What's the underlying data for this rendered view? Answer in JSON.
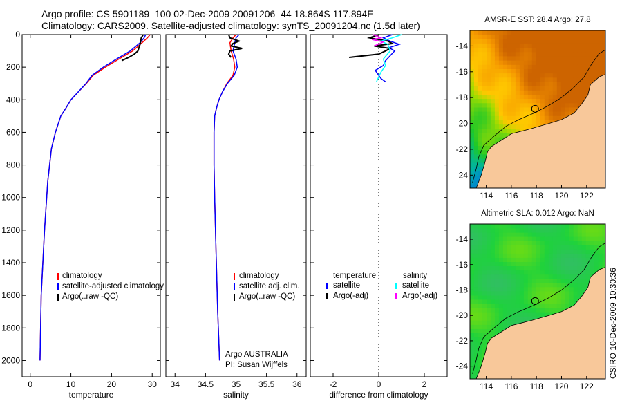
{
  "header": {
    "line1": "Argo profile: CS 5901189_100 02-Dec-2009 20091206_44 18.864S 117.894E",
    "line2": "Climatology: CARS2009. Satellite-adjusted climatology: synTS_20091204.nc (1.5d later)"
  },
  "side_text": "CSIRO 10-Dec-2009 10:30:36",
  "colors": {
    "climatology": "#ff0000",
    "satellite": "#0000ff",
    "argo": "#000000",
    "salinity_satellite": "#00ffff",
    "salinity_argo": "#ff00ff",
    "land": "#f8c89a"
  },
  "chart_data": [
    {
      "type": "line",
      "name": "temperature-profile",
      "xlabel": "temperature",
      "ylabel": "",
      "xlim": [
        -2,
        32
      ],
      "ylim": [
        2100,
        0
      ],
      "y_reversed": true,
      "xticks": [
        "0",
        "10",
        "20",
        "30"
      ],
      "yticks": [
        "0",
        "200",
        "400",
        "600",
        "800",
        "1000",
        "1200",
        "1400",
        "1600",
        "1800",
        "2000"
      ],
      "legend": [
        "climatology",
        "satellite-adjusted climatology",
        "Argo(..raw -QC)"
      ],
      "series": [
        {
          "name": "climatology",
          "color": "#ff0000",
          "x": [
            29.5,
            28.8,
            27.5,
            25.2,
            21.8,
            18.5,
            15.5,
            13.8,
            11.5,
            10.0,
            8.8,
            7.5,
            6.2,
            5.2,
            4.3,
            3.5,
            2.7,
            2.4
          ],
          "y": [
            0,
            20,
            50,
            100,
            150,
            200,
            250,
            300,
            360,
            400,
            450,
            500,
            600,
            700,
            900,
            1200,
            1600,
            2000
          ]
        },
        {
          "name": "satellite-adjusted climatology",
          "color": "#0000ff",
          "x": [
            28.4,
            28.0,
            27.0,
            24.6,
            21.2,
            18.0,
            15.2,
            13.7,
            11.5,
            10.0,
            8.8,
            7.5,
            6.2,
            5.2,
            4.3,
            3.5,
            2.7,
            2.4
          ],
          "y": [
            0,
            20,
            50,
            100,
            150,
            200,
            250,
            300,
            360,
            400,
            450,
            500,
            600,
            700,
            900,
            1200,
            1600,
            2000
          ]
        },
        {
          "name": "Argo(..raw -QC)",
          "color": "#000000",
          "x": [
            27.8,
            27.3,
            27.0,
            26.5,
            25.6,
            24.2,
            22.5
          ],
          "y": [
            0,
            20,
            60,
            100,
            120,
            140,
            160
          ]
        }
      ]
    },
    {
      "type": "line",
      "name": "salinity-profile",
      "xlabel": "salinity",
      "ylabel": "",
      "xlim": [
        33.85,
        36.15
      ],
      "ylim": [
        2100,
        0
      ],
      "y_reversed": true,
      "xticks": [
        "34",
        "34.5",
        "35",
        "35.5",
        "36"
      ],
      "legend": [
        "climatology",
        "satellite adj. clim.",
        "Argo(..raw -QC)"
      ],
      "annotations": [
        "Argo AUSTRALIA",
        "PI: Susan Wijffels"
      ],
      "series": [
        {
          "name": "climatology",
          "color": "#ff0000",
          "x": [
            35.0,
            34.95,
            34.9,
            34.92,
            34.96,
            34.98,
            34.95,
            34.85,
            34.78,
            34.72,
            34.68,
            34.65,
            34.64,
            34.64,
            34.65,
            34.67,
            34.7,
            34.73
          ],
          "y": [
            0,
            20,
            50,
            100,
            150,
            200,
            250,
            300,
            350,
            400,
            450,
            500,
            600,
            800,
            1000,
            1300,
            1700,
            2000
          ]
        },
        {
          "name": "satellite adj. clim.",
          "color": "#0000ff",
          "x": [
            35.05,
            35.0,
            34.98,
            34.95,
            35.0,
            35.02,
            34.97,
            34.86,
            34.78,
            34.72,
            34.68,
            34.65,
            34.64,
            34.64,
            34.65,
            34.67,
            34.7,
            34.73
          ],
          "y": [
            0,
            20,
            50,
            100,
            150,
            200,
            250,
            300,
            350,
            400,
            450,
            500,
            600,
            800,
            1000,
            1300,
            1700,
            2000
          ]
        },
        {
          "name": "Argo(..raw -QC)",
          "color": "#000000",
          "x": [
            34.88,
            34.9,
            35.05,
            34.95,
            34.92,
            35.1,
            34.9,
            34.88,
            34.92
          ],
          "y": [
            0,
            20,
            40,
            55,
            70,
            85,
            100,
            120,
            140
          ]
        }
      ]
    },
    {
      "type": "line",
      "name": "difference-from-climatology",
      "xlabel": "difference from climatology",
      "ylabel": "",
      "xlim": [
        -3,
        3
      ],
      "ylim": [
        2100,
        0
      ],
      "y_reversed": true,
      "xticks": [
        "-2",
        "0",
        "2"
      ],
      "legend": [
        "temperature",
        "satellite",
        "Argo(-adj)",
        "salinity",
        "satellite",
        "Argo(-adj)"
      ],
      "series": [
        {
          "name": "temperature satellite",
          "color": "#0000ff",
          "x": [
            0.6,
            0.2,
            0.5,
            0.9,
            0.45,
            0.7,
            0.5,
            0.3,
            0.2,
            -0.15,
            0.0,
            0.1,
            0.3
          ],
          "y": [
            0,
            20,
            40,
            60,
            80,
            100,
            130,
            160,
            190,
            220,
            250,
            270,
            290
          ]
        },
        {
          "name": "temperature Argo(-adj)",
          "color": "#000000",
          "x": [
            0.0,
            -0.4,
            0.4,
            0.6,
            -0.2,
            0.5,
            0.3,
            0.0,
            -1.3
          ],
          "y": [
            0,
            20,
            40,
            55,
            70,
            85,
            100,
            120,
            140
          ]
        },
        {
          "name": "salinity satellite",
          "color": "#00ffff",
          "x": [
            1.0,
            0.6,
            0.1,
            0.4,
            0.5,
            0.2,
            0.3,
            0.1,
            0.0,
            -0.1
          ],
          "y": [
            0,
            20,
            40,
            60,
            100,
            150,
            190,
            230,
            260,
            290
          ]
        },
        {
          "name": "salinity Argo(-adj)",
          "color": "#ff00ff",
          "x": [
            -0.25,
            0.1,
            -0.3,
            0.2,
            0.05,
            -0.2
          ],
          "y": [
            0,
            20,
            30,
            45,
            55,
            70
          ]
        }
      ]
    },
    {
      "type": "heatmap",
      "name": "sst-map",
      "title": "AMSR-E SST: 28.4 Argo: 27.8",
      "xticks": [
        "114",
        "116",
        "118",
        "120",
        "122"
      ],
      "yticks": [
        "-14",
        "-16",
        "-18",
        "-20",
        "-22",
        "-24"
      ],
      "xlim": [
        112.7,
        123.5
      ],
      "ylim": [
        -25,
        -12.8
      ],
      "marker": {
        "lon": 117.894,
        "lat": -18.864
      }
    },
    {
      "type": "heatmap",
      "name": "sla-map",
      "title": "Altimetric SLA: 0.012 Argo: NaN",
      "xticks": [
        "114",
        "116",
        "118",
        "120",
        "122"
      ],
      "yticks": [
        "-14",
        "-16",
        "-18",
        "-20",
        "-22",
        "-24"
      ],
      "xlim": [
        112.7,
        123.5
      ],
      "ylim": [
        -25,
        -12.8
      ],
      "marker": {
        "lon": 117.894,
        "lat": -18.864
      }
    }
  ]
}
